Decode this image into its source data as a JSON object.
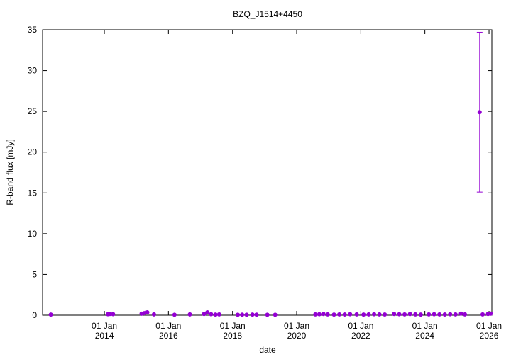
{
  "chart_data": {
    "type": "scatter",
    "title": "BZQ_J1514+4450",
    "xlabel": "date",
    "ylabel": "R-band flux [mJy]",
    "xlim": [
      "2012-01-28",
      "2026-02-02"
    ],
    "xticks": [
      {
        "value": "2014-01-01",
        "label": "01 Jan\n2014"
      },
      {
        "value": "2016-01-01",
        "label": "01 Jan\n2016"
      },
      {
        "value": "2018-01-01",
        "label": "01 Jan\n2018"
      },
      {
        "value": "2020-01-01",
        "label": "01 Jan\n2020"
      },
      {
        "value": "2022-01-01",
        "label": "01 Jan\n2022"
      },
      {
        "value": "2024-01-01",
        "label": "01 Jan\n2024"
      },
      {
        "value": "2026-01-01",
        "label": "01 Jan\n2026"
      }
    ],
    "ylim": [
      0,
      35
    ],
    "yticks": [
      0,
      5,
      10,
      15,
      20,
      25,
      30,
      35
    ],
    "series": [
      {
        "color": "#9400d3",
        "x": [
          "2012-05-01",
          "2014-02-10",
          "2014-03-05",
          "2014-04-10",
          "2015-03-01",
          "2015-04-01",
          "2015-05-05",
          "2015-07-20",
          "2016-03-10",
          "2016-09-01",
          "2017-02-10",
          "2017-03-20",
          "2017-05-01",
          "2017-06-20",
          "2017-08-01",
          "2018-03-01",
          "2018-04-20",
          "2018-06-10",
          "2018-08-15",
          "2018-10-01",
          "2019-02-01",
          "2019-05-01",
          "2020-08-01",
          "2020-09-15",
          "2020-11-01",
          "2020-12-20",
          "2021-03-01",
          "2021-05-01",
          "2021-07-01",
          "2021-09-01",
          "2021-11-15",
          "2022-02-01",
          "2022-04-01",
          "2022-06-01",
          "2022-08-01",
          "2022-10-01",
          "2023-01-15",
          "2023-03-15",
          "2023-05-15",
          "2023-07-15",
          "2023-09-15",
          "2023-11-15",
          "2024-02-15",
          "2024-04-15",
          "2024-06-15",
          "2024-08-15",
          "2024-10-15",
          "2024-12-15",
          "2025-02-15",
          "2025-04-01",
          "2025-09-16",
          "2025-10-20",
          "2025-12-20",
          "2026-01-20"
        ],
        "values": [
          0.08,
          0.12,
          0.15,
          0.13,
          0.18,
          0.25,
          0.35,
          0.1,
          0.05,
          0.1,
          0.15,
          0.35,
          0.12,
          0.08,
          0.1,
          0.05,
          0.06,
          0.05,
          0.08,
          0.07,
          0.05,
          0.05,
          0.1,
          0.12,
          0.15,
          0.1,
          0.08,
          0.1,
          0.09,
          0.12,
          0.1,
          0.08,
          0.1,
          0.12,
          0.1,
          0.09,
          0.15,
          0.12,
          0.1,
          0.14,
          0.1,
          0.08,
          0.1,
          0.12,
          0.1,
          0.09,
          0.12,
          0.1,
          0.2,
          0.1,
          24.9,
          0.1,
          0.15,
          0.2
        ],
        "errors": [
          null,
          null,
          null,
          null,
          null,
          null,
          null,
          null,
          null,
          null,
          null,
          null,
          null,
          null,
          null,
          null,
          null,
          null,
          null,
          null,
          null,
          null,
          null,
          null,
          null,
          null,
          null,
          null,
          null,
          null,
          null,
          null,
          null,
          null,
          null,
          null,
          null,
          null,
          null,
          null,
          null,
          null,
          null,
          null,
          null,
          null,
          null,
          null,
          null,
          null,
          9.8,
          null,
          null,
          null
        ]
      }
    ]
  }
}
